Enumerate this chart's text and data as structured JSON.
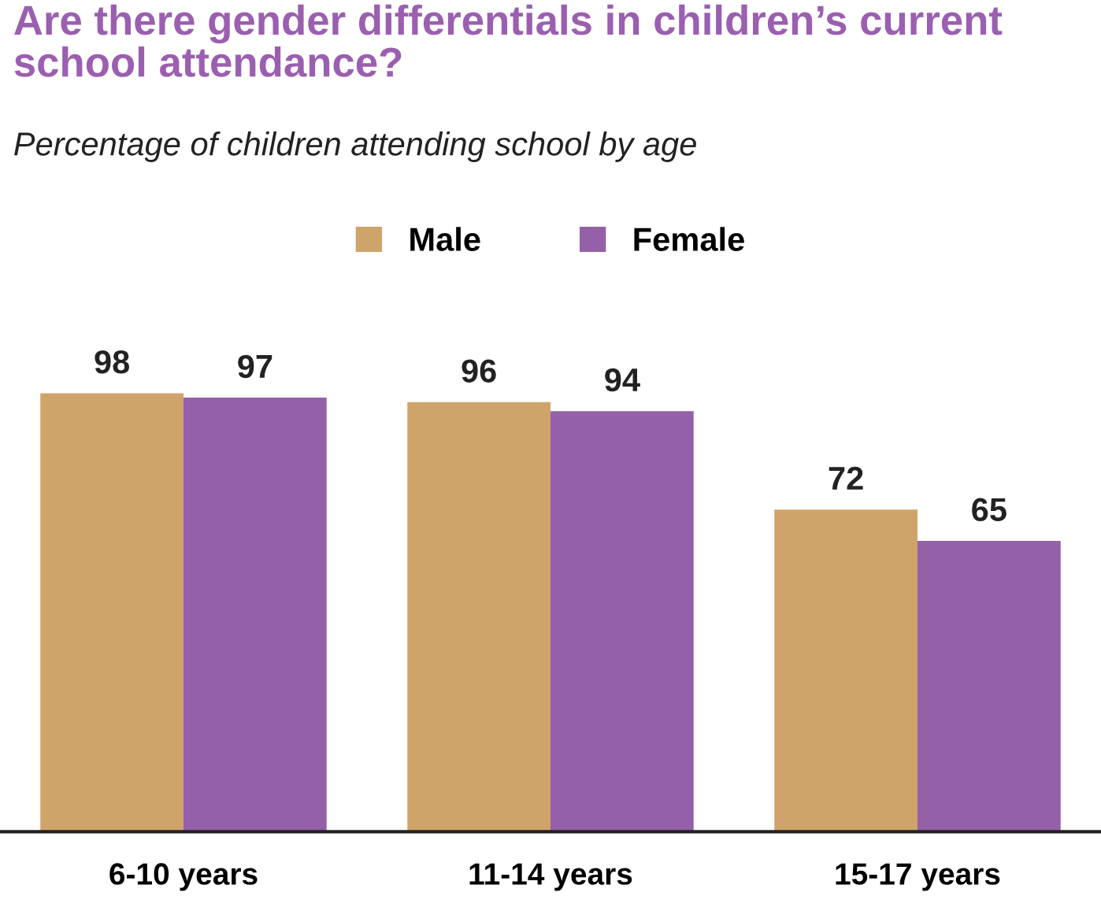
{
  "chart_data": {
    "type": "bar",
    "title": "Are there gender differentials in children’s current school attendance?",
    "subtitle": "Percentage of children attending school by age",
    "categories": [
      "6-10 years",
      "11-14 years",
      "15-17 years"
    ],
    "series": [
      {
        "name": "Male",
        "color": "#cfa46a",
        "values": [
          98,
          96,
          72
        ]
      },
      {
        "name": "Female",
        "color": "#9460a8",
        "values": [
          97,
          94,
          65
        ]
      }
    ],
    "data_labels": true,
    "legend": "top",
    "grid": false
  }
}
